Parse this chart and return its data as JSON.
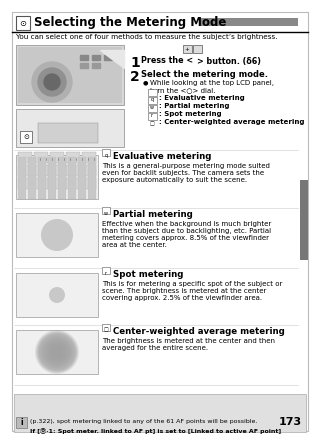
{
  "title": "Selecting the Metering Mode",
  "subtitle": "You can select one of four methods to measure the subject’s brightness.",
  "section1_title": "Evaluative metering",
  "section1_text": "This is a general-purpose metering mode suited\neven for backlit subjects. The camera sets the\nexposure automatically to suit the scene.",
  "section2_title": "Partial metering",
  "section2_text": "Effective when the background is much brighter\nthan the subject due to backlighting, etc. Partial\nmetering covers approx. 8.5% of the viewfinder\narea at the center.",
  "section3_title": "Spot metering",
  "section3_text": "This is for metering a specific spot of the subject or\nscene. The brightness is metered at the center\ncovering approx. 2.5% of the viewfinder area.",
  "section4_title": "Center-weighted average metering",
  "section4_text": "The brightness is metered at the center and then\naveraged for the entire scene.",
  "note_line1": "If [Ⓞ·1: Spot meter. linked to AF pt] is set to [Linked to active AF point]",
  "note_line2": "(p.322), spot metering linked to any of the 61 AF points will be possible.",
  "page_number": "173",
  "bg_color": "#ffffff",
  "title_gray": "#888888",
  "light_gray": "#cccccc",
  "border_gray": "#aaaaaa",
  "note_bg": "#e0e0e0",
  "thumb_bg": "#f0f0f0",
  "sidebar_color": "#777777"
}
